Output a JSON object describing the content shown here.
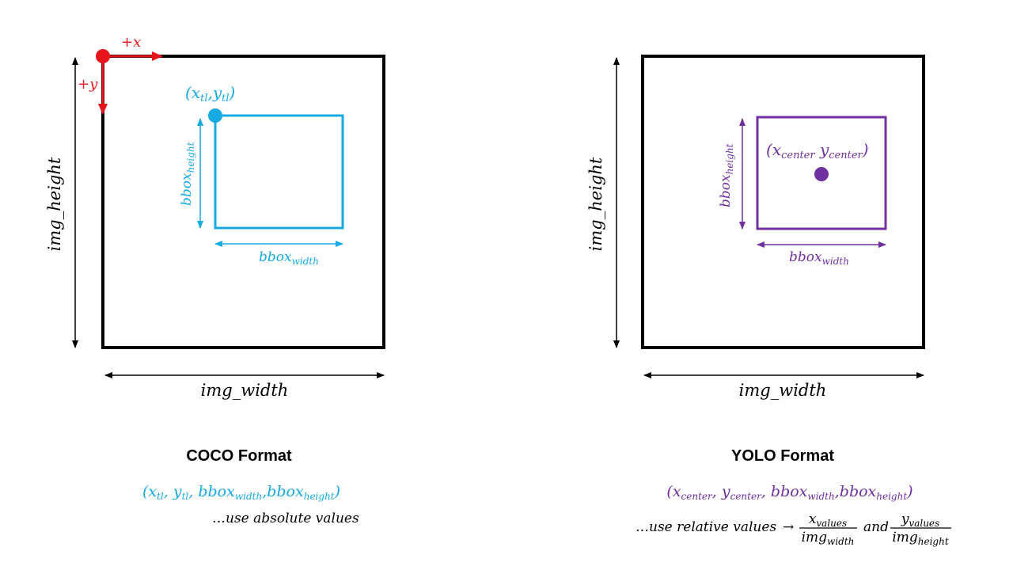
{
  "colors": {
    "black": "#000000",
    "red": "#e8141b",
    "coco": "#17a9e2",
    "yolo": "#7030a0"
  },
  "coco": {
    "axis_x": "+x",
    "axis_y": "+y",
    "tl": {
      "l": "(",
      "x": "x",
      "xs": "tl",
      "c": ",",
      "y": "y",
      "ys": "tl",
      "r": ")"
    },
    "bbox_height": {
      "base": "bbox",
      "sub": "height"
    },
    "bbox_width": {
      "base": "bbox",
      "sub": "width"
    },
    "img_height": "img_height",
    "img_width": "img_width",
    "title": "COCO Format",
    "tuple": {
      "l": "(",
      "a": "x",
      "as": "tl",
      "c1": ",",
      "b": "y",
      "bs": "tl",
      "c2": ",",
      "cb": "bbox",
      "cs": "width",
      "c3": ",",
      "db": "bbox",
      "ds": "height",
      "r": ")"
    },
    "note": "…use absolute values"
  },
  "yolo": {
    "center": {
      "l": "(",
      "x": "x",
      "xs": "center",
      "y": "y",
      "ys": "center",
      "r": ")"
    },
    "bbox_height": {
      "base": "bbox",
      "sub": "height"
    },
    "bbox_width": {
      "base": "bbox",
      "sub": "width"
    },
    "img_height": "img_height",
    "img_width": "img_width",
    "title": "YOLO Format",
    "tuple": {
      "l": "(",
      "a": "x",
      "as": "center",
      "c1": ",",
      "b": "y",
      "bs": "center",
      "c2": ",",
      "cb": "bbox",
      "cs": "width",
      "c3": ",",
      "db": "bbox",
      "ds": "height",
      "r": ")"
    },
    "note": "…use relative values",
    "arrow": "→",
    "and": "and",
    "frac1": {
      "num": "x",
      "num_sub": "values",
      "den": "img",
      "den_sub": "width"
    },
    "frac2": {
      "num": "y",
      "num_sub": "values",
      "den": "img",
      "den_sub": "height"
    }
  }
}
